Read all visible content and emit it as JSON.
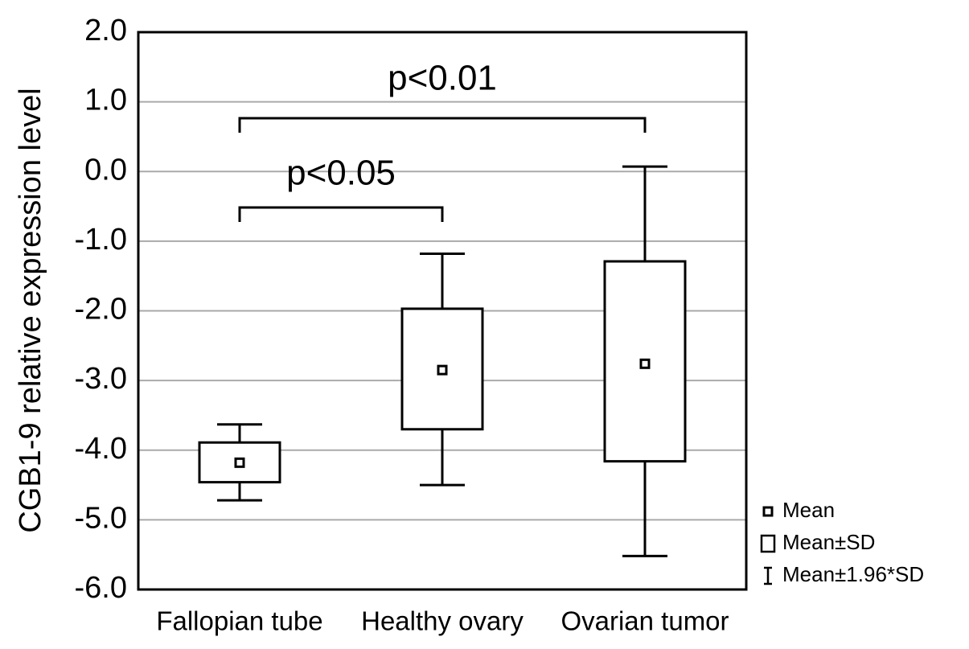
{
  "chart_data": {
    "type": "box",
    "y_label": "CGB1-9 relative expression level",
    "categories": [
      "Fallopian tube",
      "Healthy ovary",
      "Ovarian tumor"
    ],
    "mean": [
      -4.18,
      -2.85,
      -2.76
    ],
    "sd_lower": [
      -4.46,
      -3.7,
      -4.16
    ],
    "sd_upper": [
      -3.89,
      -1.97,
      -1.29
    ],
    "whisker_lower": [
      -4.72,
      -4.5,
      -5.52
    ],
    "whisker_upper": [
      -3.63,
      -1.18,
      0.07
    ],
    "ylim": [
      -6,
      2
    ],
    "yticks": [
      {
        "value": 2,
        "label": "2.0"
      },
      {
        "value": 1,
        "label": "1.0"
      },
      {
        "value": 0,
        "label": "0.0"
      },
      {
        "value": -1,
        "label": "-1.0"
      },
      {
        "value": -2,
        "label": "-2.0"
      },
      {
        "value": -3,
        "label": "-3.0"
      },
      {
        "value": -4,
        "label": "-4.0"
      },
      {
        "value": -5,
        "label": "-5.0"
      },
      {
        "value": -6,
        "label": "-6.0"
      }
    ],
    "grid": true,
    "color": "#000000",
    "annotations": [
      "p<0.05",
      "p<0.01"
    ],
    "legend": [
      "Mean",
      "Mean±SD",
      "Mean±1.96*SD"
    ]
  }
}
